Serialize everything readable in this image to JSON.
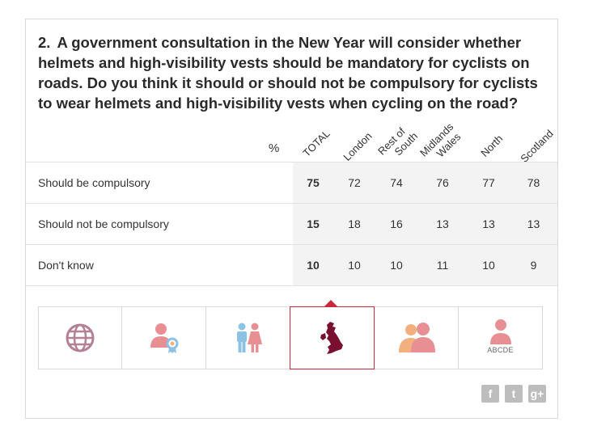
{
  "question": {
    "number": "2.",
    "text": "A government consultation in the New Year will consider whether helmets and high-visibility vests should be mandatory for cyclists on roads. Do you think it should or should not be compulsory for cyclists to wear helmets and high-visibility vests when cycling on the road?"
  },
  "table": {
    "percent_symbol": "%",
    "columns": [
      "TOTAL",
      "London",
      "Rest of\nSouth",
      "Midlands\nWales",
      "North",
      "Scotland"
    ],
    "rows": [
      {
        "label": "Should be compulsory",
        "values": [
          "75",
          "72",
          "74",
          "76",
          "77",
          "78"
        ]
      },
      {
        "label": "Should not be compulsory",
        "values": [
          "15",
          "18",
          "16",
          "13",
          "13",
          "13"
        ]
      },
      {
        "label": "Don't know",
        "values": [
          "10",
          "10",
          "10",
          "11",
          "10",
          "9"
        ]
      }
    ]
  },
  "tabs": [
    {
      "icon": "globe-icon"
    },
    {
      "icon": "person-award-icon"
    },
    {
      "icon": "gender-icon"
    },
    {
      "icon": "uk-map-icon",
      "active": true
    },
    {
      "icon": "people-age-icon"
    },
    {
      "icon": "person-abcde-icon",
      "caption": "ABCDE"
    }
  ],
  "social": {
    "facebook": "f",
    "twitter": "t",
    "google_plus": "g+"
  },
  "colors": {
    "accent": "#c8283a",
    "map": "#7a1030",
    "icon_pink": "#e88f94",
    "icon_blue": "#8cc3e3",
    "icon_orange": "#f2b07e",
    "globe": "#b38095"
  }
}
